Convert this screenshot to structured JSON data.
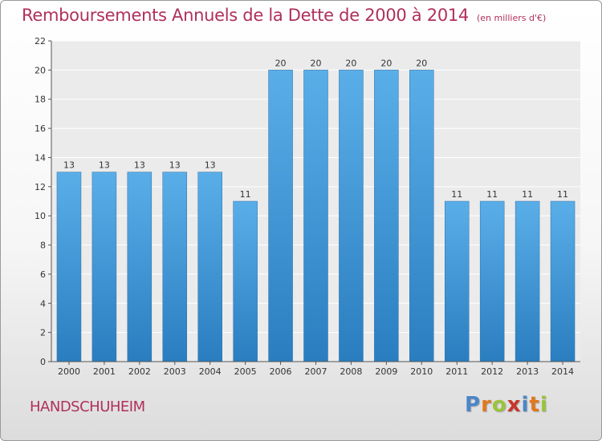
{
  "chart_data": {
    "type": "bar",
    "title": "Remboursements Annuels de la Dette de 2000 à 2014",
    "unit_note": "(en milliers d'€)",
    "categories": [
      "2000",
      "2001",
      "2002",
      "2003",
      "2004",
      "2005",
      "2006",
      "2007",
      "2008",
      "2009",
      "2010",
      "2011",
      "2012",
      "2013",
      "2014"
    ],
    "values": [
      13,
      13,
      13,
      13,
      13,
      11,
      20,
      20,
      20,
      20,
      20,
      11,
      11,
      11,
      11
    ],
    "data_labels": [
      "13",
      "13",
      "13",
      "13",
      "13",
      "11",
      "20",
      "20",
      "20",
      "20",
      "20",
      "11",
      "11",
      "11",
      "11"
    ],
    "y_ticks": [
      "0",
      "2",
      "4",
      "6",
      "8",
      "10",
      "12",
      "14",
      "16",
      "18",
      "20",
      "22"
    ],
    "ylim": [
      0,
      22
    ],
    "grid": true,
    "xlabel": "",
    "ylabel": "",
    "colors": {
      "bar_light": "#5aaee8",
      "bar_dark": "#2a7ec0",
      "title": "#b0305a"
    }
  },
  "footer": {
    "commune": "HANDSCHUHEIM",
    "logo_letters": [
      "P",
      "r",
      "o",
      "x",
      "i",
      "t",
      "i"
    ],
    "logo_colors": [
      "#4b86c8",
      "#e0781e",
      "#9ac43a",
      "#c8352b",
      "#4b86c8",
      "#e0781e",
      "#9ac43a"
    ]
  }
}
